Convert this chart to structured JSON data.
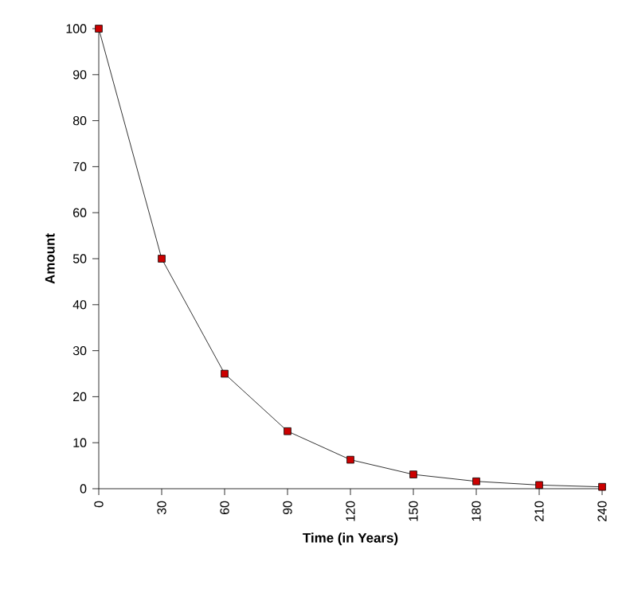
{
  "chart_data": {
    "type": "line",
    "xlabel": "Time (in Years)",
    "ylabel": "Amount",
    "x": [
      0,
      30,
      60,
      90,
      120,
      150,
      180,
      210,
      240
    ],
    "series": [
      {
        "color": "#cc0000",
        "values": [
          100,
          50,
          25,
          12.5,
          6.3,
          3.1,
          1.6,
          0.8,
          0.4
        ]
      }
    ],
    "xlim": [
      0,
      240
    ],
    "xticks": [
      0,
      30,
      60,
      90,
      120,
      150,
      180,
      210,
      240
    ],
    "ylim": [
      0,
      100
    ],
    "yticks": [
      0,
      10,
      20,
      30,
      40,
      50,
      60,
      70,
      80,
      90,
      100
    ],
    "marker": "square",
    "line_style": "solid"
  }
}
